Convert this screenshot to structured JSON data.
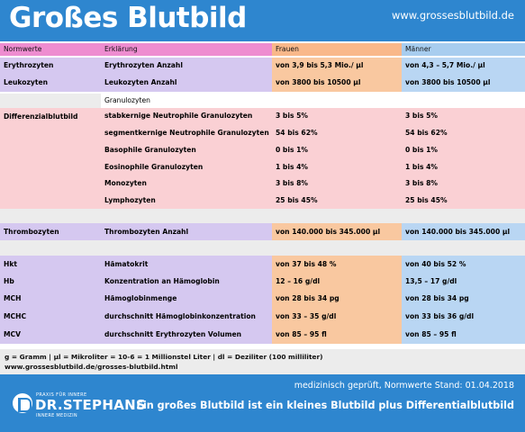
{
  "header": {
    "title": "Großes Blutbild",
    "url": "www.grossesblutbild.de"
  },
  "table": {
    "columns": [
      "Normwerte",
      "Erklärung",
      "Frauen",
      "Männer"
    ],
    "rows": [
      {
        "name": "Erythrozyten",
        "desc": "Erythrozyten Anzahl",
        "women": "von 3,9 bis 5,3 Mio./ µl",
        "men": "von 4,3 – 5,7 Mio./ µl"
      },
      {
        "name": "Leukozyten",
        "desc": "Leukozyten Anzahl",
        "women": "von 3800 bis 10500 µl",
        "men": "von 3800 bis 10500 µl"
      }
    ],
    "granulocytes_label": "Granulozyten",
    "differential": {
      "name": "Differenzialblutbild",
      "rows": [
        {
          "desc": "stabkernige Neutrophile Granulozyten",
          "women": "3 bis 5%",
          "men": "3 bis 5%"
        },
        {
          "desc": "segmentkernige Neutrophile Granulozyten",
          "women": "54 bis 62%",
          "men": "54 bis 62%"
        },
        {
          "desc": "Basophile Granulozyten",
          "women": "0 bis 1%",
          "men": "0 bis 1%"
        },
        {
          "desc": "Eosinophile Granulozyten",
          "women": "1 bis 4%",
          "men": "1 bis 4%"
        },
        {
          "desc": "Monozyten",
          "women": "3 bis 8%",
          "men": "3 bis 8%"
        },
        {
          "desc": "Lymphozyten",
          "women": "25 bis 45%",
          "men": "25 bis 45%"
        }
      ]
    },
    "thrombocytes": {
      "name": "Thrombozyten",
      "desc": "Thrombozyten Anzahl",
      "women": "von 140.000 bis 345.000 µl",
      "men": "von 140.000 bis 345.000 µl"
    },
    "indices": [
      {
        "name": "Hkt",
        "desc": "Hämatokrit",
        "women": "von 37 bis 48 %",
        "men": "von 40 bis 52 %"
      },
      {
        "name": "Hb",
        "desc": "Konzentration an Hämoglobin",
        "women": "12 – 16 g/dl",
        "men": "13,5 – 17 g/dl"
      },
      {
        "name": "MCH",
        "desc": "Hämoglobinmenge",
        "women": "von 28 bis 34 pg",
        "men": "von 28 bis 34 pg"
      },
      {
        "name": "MCHC",
        "desc": "durchschnitt Hämoglobinkonzentration",
        "women": "von 33 – 35 g/dl",
        "men": "von 33 bis 36 g/dl"
      },
      {
        "name": "MCV",
        "desc": "durchschnitt Erythrozyten Volumen",
        "women": "von 85 – 95 fl",
        "men": "von 85 – 95 fl"
      }
    ]
  },
  "notes": {
    "units": "g = Gramm | µl = Mikroliter = 10-6 = 1 Millionstel Liter | dl = Deziliter (100 milliliter)",
    "link": "www.grossesblutbild.de/grosses-blutbild.html"
  },
  "footer": {
    "logo_top": "PRAXIS FÜR INNERE",
    "logo_name": "DR.STEPHANS",
    "logo_sub": "INNERE MEDIZIN",
    "stand": "medizinisch geprüft, Normwerte Stand: 01.04.2018",
    "claim": "Ein großes Blutbild ist ein kleines Blutbild plus Differentialblutbild"
  },
  "colors": {
    "brand_blue": "#2e86cf",
    "lavender": "#d5c8f0",
    "pink": "#fad0d4",
    "orange": "#f9c8a0",
    "light_blue": "#b9d6f3"
  }
}
